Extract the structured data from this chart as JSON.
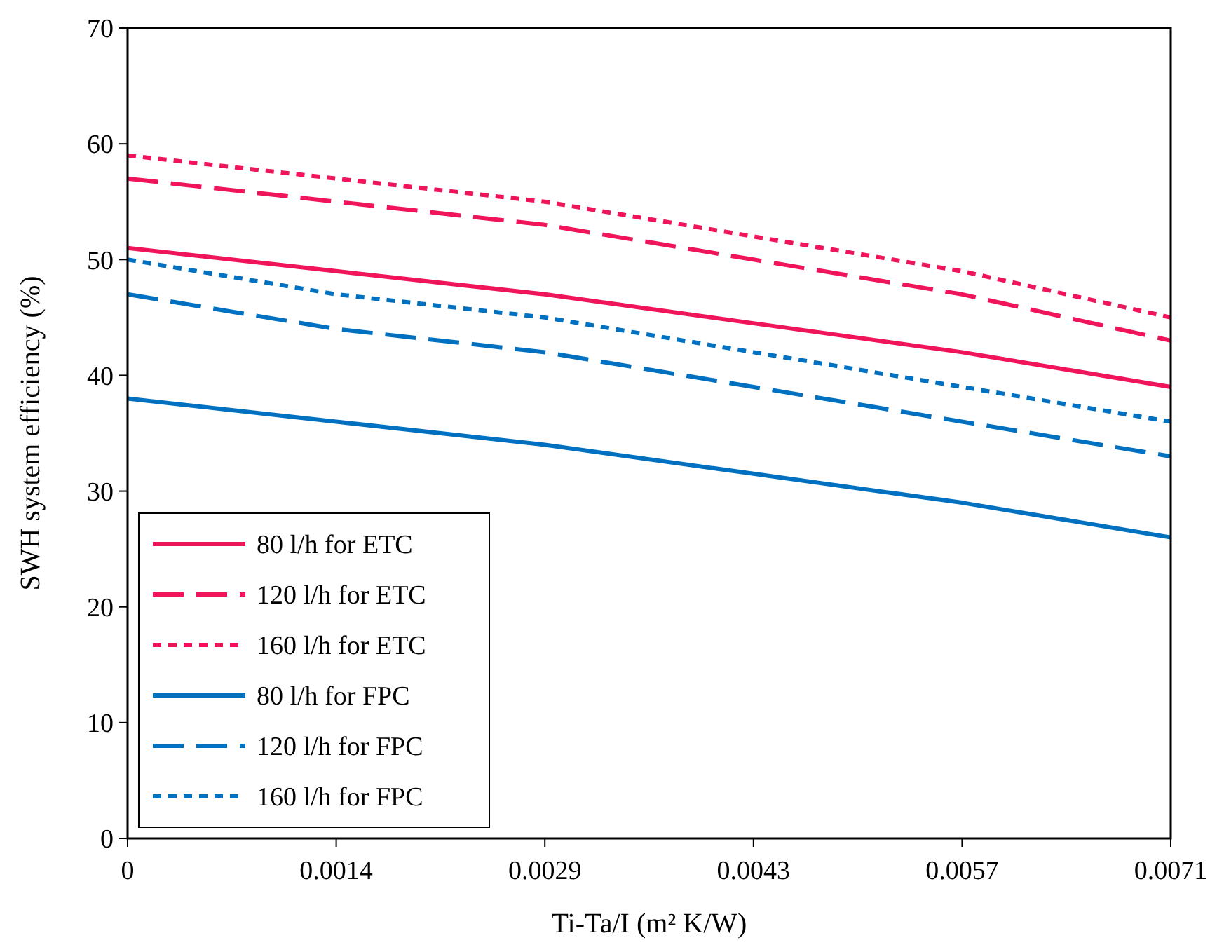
{
  "chart_data": {
    "type": "line",
    "xlabel": "Ti-Ta/I (m² K/W)",
    "ylabel": "SWH system efficiency (%)",
    "categories": [
      "0",
      "0.0014",
      "0.0029",
      "0.0043",
      "0.0057",
      "0.0071"
    ],
    "ylim": [
      0,
      70
    ],
    "yticks": [
      0,
      10,
      20,
      30,
      40,
      50,
      60,
      70
    ],
    "grid": false,
    "legend": "bottom left",
    "series": [
      {
        "name": "80 l/h for ETC",
        "color": "#f0145a",
        "line_style": "solid",
        "values": [
          51,
          49,
          47,
          44.5,
          42,
          39
        ]
      },
      {
        "name": "120 l/h for ETC",
        "color": "#f0145a",
        "line_style": "dashed",
        "values": [
          57,
          55,
          53,
          50,
          47,
          43
        ]
      },
      {
        "name": "160 l/h for ETC",
        "color": "#f0145a",
        "line_style": "dotted",
        "values": [
          59,
          57,
          55,
          52,
          49,
          45
        ]
      },
      {
        "name": "80 l/h for FPC",
        "color": "#0070c0",
        "line_style": "solid",
        "values": [
          38,
          36,
          34,
          31.5,
          29,
          26
        ]
      },
      {
        "name": "120 l/h for FPC",
        "color": "#0070c0",
        "line_style": "dashed",
        "values": [
          47,
          44,
          42,
          39,
          36,
          33
        ]
      },
      {
        "name": "160 l/h for FPC",
        "color": "#0070c0",
        "line_style": "dotted",
        "values": [
          50,
          47,
          45,
          42,
          39,
          36
        ]
      }
    ]
  }
}
